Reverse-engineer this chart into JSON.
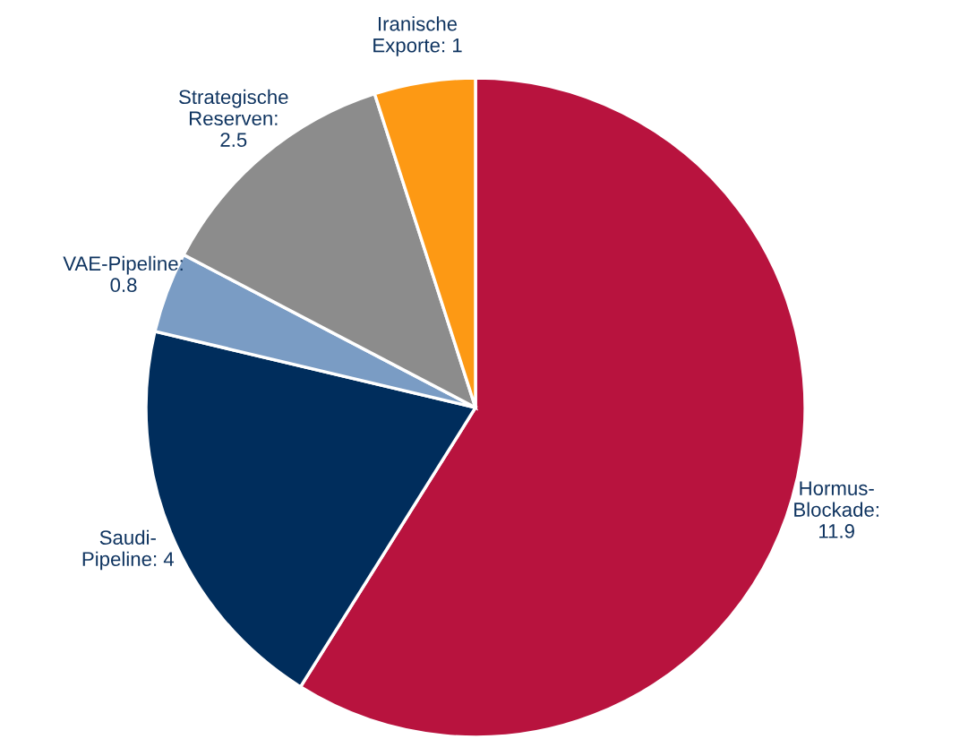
{
  "chart_data": {
    "type": "pie",
    "categories": [
      "Hormus-\nBlockade:\n11.9",
      "Saudi-\nPipeline: 4",
      "VAE-Pipeline:\n0.8",
      "Strategische\nReserven:\n2.5",
      "Iranische\nExporte: 1"
    ],
    "values": [
      11.9,
      4,
      0.8,
      2.5,
      1
    ],
    "colors": [
      "#b8133e",
      "#002d5c",
      "#7a9cc4",
      "#8c8c8c",
      "#fd9914"
    ],
    "legend": false
  }
}
